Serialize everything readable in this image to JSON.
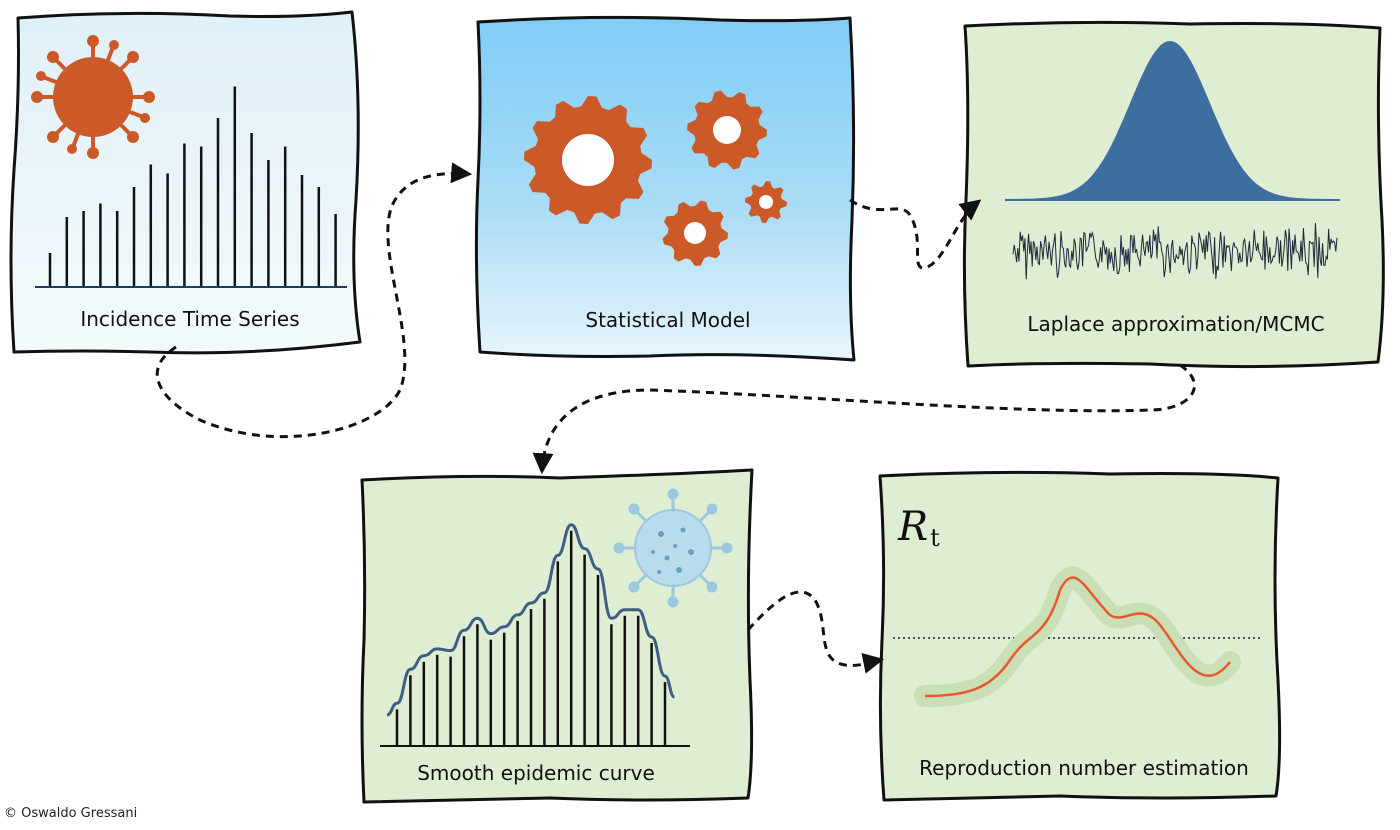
{
  "panels": {
    "incidence": {
      "label": "Incidence Time Series",
      "bars": [
        0.22,
        0.46,
        0.5,
        0.55,
        0.5,
        0.66,
        0.81,
        0.75,
        0.95,
        0.93,
        1.12,
        1.33,
        1.02,
        0.84,
        0.93,
        0.74,
        0.66,
        0.48
      ]
    },
    "model": {
      "label": "Statistical Model"
    },
    "inference": {
      "label": "Laplace approximation/MCMC"
    },
    "smooth": {
      "label": "Smooth epidemic curve",
      "bars": [
        0.21,
        0.41,
        0.49,
        0.53,
        0.52,
        0.64,
        0.71,
        0.62,
        0.66,
        0.73,
        0.8,
        0.86,
        1.08,
        1.26,
        1.12,
        1.0,
        0.71,
        0.76,
        0.76,
        0.6,
        0.37
      ]
    },
    "reproduction": {
      "label": "Reproduction number estimation",
      "symbol": "R",
      "subscript": "t"
    }
  },
  "copyright": "© Oswaldo Gressani",
  "colors": {
    "panel_green": "#dfedd3",
    "panel_sky_top": "#7fcdf6",
    "panel_sky_bottom": "#e8f5fc",
    "gear_orange": "#cc5a28",
    "bell_blue": "#3c6f9f",
    "curve_blue": "#3d5f86",
    "rt_orange": "#e8582c",
    "rt_band": "#c9dfb6",
    "virus_blue": "#b8dcee"
  }
}
